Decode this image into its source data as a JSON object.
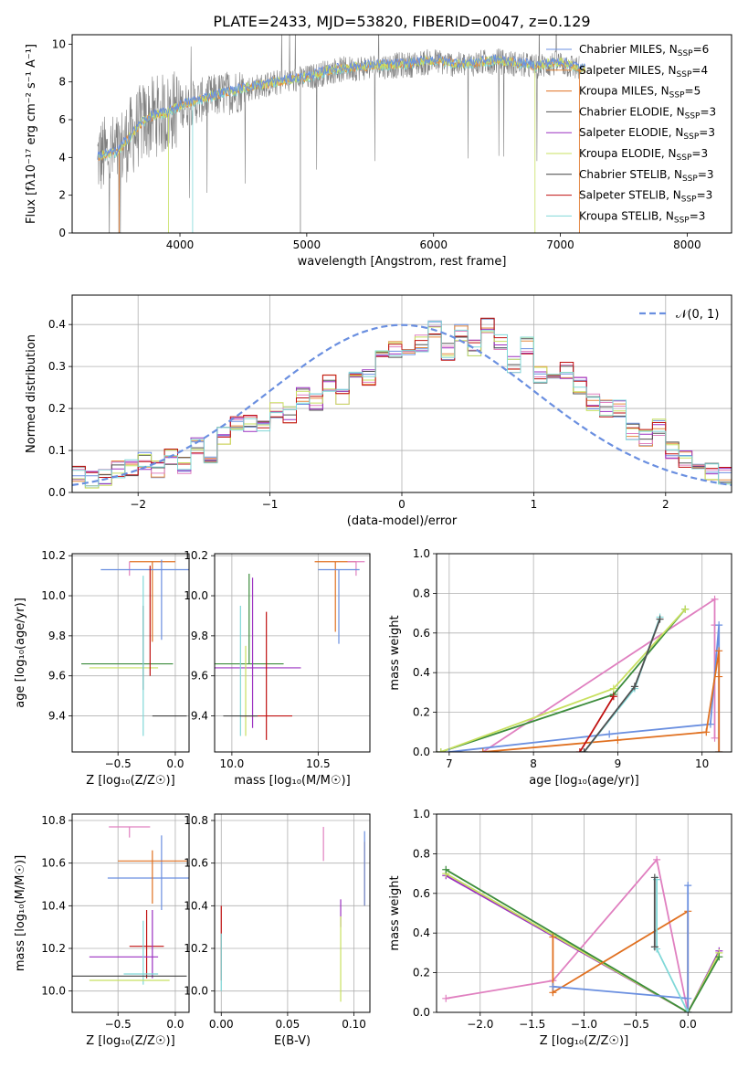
{
  "title": "PLATE=2433, MJD=53820, FIBERID=0047, z=0.129",
  "colors": {
    "chabrier_miles": "#6a8fe0",
    "salpeter_miles": "#e68a3c",
    "kroupa_miles": "#e07020",
    "chabrier_elodie": "#505050",
    "salpeter_elodie": "#9b30c0",
    "kroupa_elodie": "#c8e060",
    "chabrier_stelib": "#404040",
    "salpeter_stelib": "#c01010",
    "kroupa_stelib": "#80d8d8",
    "pink": "#e080c0",
    "green": "#3c8c3c",
    "gauss": "#6a8fe0",
    "spectrum": "#808080"
  },
  "chart_data": [
    {
      "type": "line",
      "title": "PLATE=2433, MJD=53820, FIBERID=0047, z=0.129",
      "xlabel": "wavelength [Angstrom, rest frame]",
      "ylabel": "Flux [fλ10⁻¹⁷ erg cm⁻² s⁻¹ A⁻¹]",
      "xlim": [
        3150,
        8350
      ],
      "ylim": [
        0,
        10.5
      ],
      "xticks": [
        "4000",
        "5000",
        "6000",
        "7000",
        "8000"
      ],
      "yticks": [
        "0",
        "2",
        "4",
        "6",
        "8",
        "10"
      ],
      "legend_position": "right",
      "legend": [
        {
          "label": "Chabrier MILES, N",
          "sub": "SSP",
          "suffix": "=6",
          "color_key": "chabrier_miles"
        },
        {
          "label": "Salpeter MILES, N",
          "sub": "SSP",
          "suffix": "=4",
          "color_key": "salpeter_miles"
        },
        {
          "label": "Kroupa MILES, N",
          "sub": "SSP",
          "suffix": "=5",
          "color_key": "kroupa_miles"
        },
        {
          "label": "Chabrier ELODIE, N",
          "sub": "SSP",
          "suffix": "=3",
          "color_key": "chabrier_elodie"
        },
        {
          "label": "Salpeter ELODIE, N",
          "sub": "SSP",
          "suffix": "=3",
          "color_key": "salpeter_elodie"
        },
        {
          "label": "Kroupa ELODIE, N",
          "sub": "SSP",
          "suffix": "=3",
          "color_key": "kroupa_elodie"
        },
        {
          "label": "Chabrier STELIB, N",
          "sub": "SSP",
          "suffix": "=3",
          "color_key": "chabrier_stelib"
        },
        {
          "label": "Salpeter STELIB, N",
          "sub": "SSP",
          "suffix": "=3",
          "color_key": "salpeter_stelib"
        },
        {
          "label": "Kroupa STELIB, N",
          "sub": "SSP",
          "suffix": "=3",
          "color_key": "kroupa_stelib"
        }
      ],
      "spectrum_start": 3350,
      "spectrum_end": 7150,
      "model_envelope": {
        "x": [
          3350,
          3500,
          3600,
          3700,
          3800,
          3900,
          4000,
          4100,
          4300,
          4500,
          4800,
          5000,
          5200,
          5500,
          5800,
          6000,
          6200,
          6500,
          6800,
          7000,
          7200
        ],
        "y": [
          4.0,
          4.2,
          5.0,
          5.8,
          6.2,
          6.3,
          6.7,
          6.9,
          7.3,
          7.6,
          8.0,
          8.2,
          8.6,
          8.8,
          8.9,
          9.1,
          8.9,
          9.1,
          8.8,
          9.0,
          8.6
        ]
      }
    },
    {
      "type": "histogram",
      "xlabel": "(data-model)/error",
      "ylabel": "Normed distribution",
      "xlim": [
        -2.5,
        2.5
      ],
      "ylim": [
        0,
        0.47
      ],
      "xticks": [
        "−2",
        "−1",
        "0",
        "1",
        "2"
      ],
      "yticks": [
        "0.0",
        "0.1",
        "0.2",
        "0.3",
        "0.4"
      ],
      "legend": "𝒩(0, 1)",
      "bin_edges_range": [
        -2.5,
        2.5
      ],
      "n_bins": 50,
      "values": [
        0.045,
        0.03,
        0.035,
        0.055,
        0.06,
        0.075,
        0.055,
        0.085,
        0.065,
        0.11,
        0.09,
        0.135,
        0.165,
        0.165,
        0.15,
        0.195,
        0.185,
        0.23,
        0.215,
        0.26,
        0.23,
        0.295,
        0.275,
        0.33,
        0.34,
        0.32,
        0.355,
        0.39,
        0.335,
        0.38,
        0.345,
        0.395,
        0.36,
        0.305,
        0.35,
        0.28,
        0.27,
        0.29,
        0.255,
        0.215,
        0.2,
        0.2,
        0.145,
        0.13,
        0.155,
        0.1,
        0.08,
        0.07,
        0.05,
        0.04
      ]
    },
    {
      "type": "scatter",
      "xlabel": "Z [log₁₀(Z/Z☉)]",
      "ylabel": "age  [log₁₀(age/yr)]",
      "xlim": [
        -0.9,
        0.12
      ],
      "ylim": [
        9.22,
        10.21
      ],
      "xticks": [
        "−0.5",
        "0.0"
      ],
      "yticks": [
        "9.4",
        "9.6",
        "9.8",
        "10.0",
        "10.2"
      ],
      "points": [
        {
          "x": -0.2,
          "y": 10.17,
          "xerr": 0.2,
          "yerr_lo": 0.4,
          "yerr_hi": 0.0,
          "c": "kroupa_miles"
        },
        {
          "x": -0.4,
          "y": 10.17,
          "xerr": 0.0,
          "yerr_lo": 0.07,
          "yerr_hi": 0.0,
          "c": "pink"
        },
        {
          "x": -0.2,
          "y": 10.13,
          "xerr": 0.45,
          "yerr_lo": 0.0,
          "yerr_hi": 0.0,
          "c": "chabrier_miles"
        },
        {
          "x": -0.12,
          "y": 10.13,
          "xerr": 0.0,
          "yerr_lo": 0.35,
          "yerr_hi": 0.05,
          "c": "chabrier_miles"
        },
        {
          "x": -0.42,
          "y": 9.66,
          "xerr": 0.4,
          "yerr_lo": 0.0,
          "yerr_hi": 0.0,
          "c": "green"
        },
        {
          "x": -0.45,
          "y": 9.64,
          "xerr": 0.3,
          "yerr_lo": 0.0,
          "yerr_hi": 0.0,
          "c": "kroupa_elodie"
        },
        {
          "x": -0.28,
          "y": 9.65,
          "xerr": 0.0,
          "yerr_lo": 0.12,
          "yerr_hi": 0.3,
          "c": "chabrier_elodie"
        },
        {
          "x": -0.22,
          "y": 9.7,
          "xerr": 0.0,
          "yerr_lo": 0.1,
          "yerr_hi": 0.45,
          "c": "salpeter_stelib"
        },
        {
          "x": -0.28,
          "y": 9.4,
          "xerr": 0.0,
          "yerr_lo": 0.1,
          "yerr_hi": 0.7,
          "c": "kroupa_stelib"
        },
        {
          "x": -0.05,
          "y": 9.4,
          "xerr": 0.15,
          "yerr_lo": 0.0,
          "yerr_hi": 0.0,
          "c": "chabrier_stelib"
        }
      ]
    },
    {
      "type": "scatter",
      "xlabel": "mass [log₁₀(M/M☉)]",
      "ylabel": "",
      "xlim": [
        9.9,
        10.8
      ],
      "ylim": [
        9.22,
        10.21
      ],
      "xticks": [
        "10.0",
        "10.5"
      ],
      "yticks": [
        "9.4",
        "9.6",
        "9.8",
        "10.0",
        "10.2"
      ],
      "points": [
        {
          "x": 10.6,
          "y": 10.17,
          "xerr": 0.12,
          "yerr_lo": 0.35,
          "yerr_hi": 0.0,
          "c": "kroupa_miles"
        },
        {
          "x": 10.72,
          "y": 10.17,
          "xerr": 0.05,
          "yerr_lo": 0.07,
          "yerr_hi": 0.0,
          "c": "pink"
        },
        {
          "x": 10.62,
          "y": 10.13,
          "xerr": 0.12,
          "yerr_lo": 0.37,
          "yerr_hi": 0.0,
          "c": "chabrier_miles"
        },
        {
          "x": 10.1,
          "y": 9.66,
          "xerr": 0.2,
          "yerr_lo": 0.0,
          "yerr_hi": 0.45,
          "c": "green"
        },
        {
          "x": 10.12,
          "y": 9.64,
          "xerr": 0.28,
          "yerr_lo": 0.3,
          "yerr_hi": 0.45,
          "c": "salpeter_elodie"
        },
        {
          "x": 10.2,
          "y": 9.65,
          "xerr": 0.0,
          "yerr_lo": 0.37,
          "yerr_hi": 0.27,
          "c": "salpeter_stelib"
        },
        {
          "x": 10.08,
          "y": 9.65,
          "xerr": 0.0,
          "yerr_lo": 0.35,
          "yerr_hi": 0.1,
          "c": "kroupa_elodie"
        },
        {
          "x": 10.05,
          "y": 9.4,
          "xerr": 0.0,
          "yerr_lo": 0.1,
          "yerr_hi": 0.55,
          "c": "kroupa_stelib"
        },
        {
          "x": 10.2,
          "y": 9.4,
          "xerr": 0.15,
          "yerr_lo": 0.0,
          "yerr_hi": 0.0,
          "c": "salpeter_stelib"
        },
        {
          "x": 10.05,
          "y": 9.4,
          "xerr": 0.1,
          "yerr_lo": 0.0,
          "yerr_hi": 0.0,
          "c": "chabrier_stelib"
        }
      ]
    },
    {
      "type": "line",
      "xlabel": "age  [log₁₀(age/yr)]",
      "ylabel": "mass weight",
      "xlim": [
        6.85,
        10.35
      ],
      "ylim": [
        0,
        1.0
      ],
      "xticks": [
        "7",
        "8",
        "9",
        "10"
      ],
      "yticks": [
        "0.0",
        "0.2",
        "0.4",
        "0.6",
        "0.8",
        "1.0"
      ],
      "series": [
        {
          "c": "pink",
          "x": [
            7.4,
            10.15,
            10.15,
            10.15
          ],
          "y": [
            0.0,
            0.77,
            0.64,
            0.07
          ]
        },
        {
          "c": "green",
          "x": [
            6.9,
            8.95,
            9.8
          ],
          "y": [
            0.0,
            0.29,
            0.72
          ]
        },
        {
          "c": "kroupa_elodie",
          "x": [
            6.9,
            8.95,
            9.8
          ],
          "y": [
            0.0,
            0.32,
            0.72
          ]
        },
        {
          "c": "chabrier_miles",
          "x": [
            7.0,
            8.9,
            10.1,
            10.2,
            10.2
          ],
          "y": [
            0.0,
            0.09,
            0.14,
            0.64,
            0.0
          ]
        },
        {
          "c": "kroupa_miles",
          "x": [
            7.4,
            9.0,
            10.05,
            10.2,
            10.2,
            10.2
          ],
          "y": [
            0.0,
            0.06,
            0.1,
            0.51,
            0.38,
            0.0
          ]
        },
        {
          "c": "salpeter_stelib",
          "x": [
            8.55,
            8.95
          ],
          "y": [
            0.0,
            0.28
          ]
        },
        {
          "c": "kroupa_stelib",
          "x": [
            8.6,
            9.2,
            9.5
          ],
          "y": [
            0.0,
            0.32,
            0.68
          ]
        },
        {
          "c": "chabrier_elodie",
          "x": [
            8.6,
            9.2,
            9.5
          ],
          "y": [
            0.0,
            0.33,
            0.67
          ]
        }
      ]
    },
    {
      "type": "scatter",
      "xlabel": "Z [log₁₀(Z/Z☉)]",
      "ylabel": "mass [log₁₀(M/M☉)]",
      "xlim": [
        -0.9,
        0.12
      ],
      "ylim": [
        9.9,
        10.83
      ],
      "xticks": [
        "−0.5",
        "0.0"
      ],
      "yticks": [
        "10.0",
        "10.2",
        "10.4",
        "10.6",
        "10.8"
      ],
      "points": [
        {
          "x": -0.4,
          "y": 10.77,
          "xerr": 0.18,
          "yerr_lo": 0.05,
          "yerr_hi": 0.0,
          "c": "pink"
        },
        {
          "x": -0.12,
          "y": 10.53,
          "xerr": 0.47,
          "yerr_lo": 0.15,
          "yerr_hi": 0.2,
          "c": "chabrier_miles"
        },
        {
          "x": -0.2,
          "y": 10.61,
          "xerr": 0.3,
          "yerr_lo": 0.2,
          "yerr_hi": 0.05,
          "c": "kroupa_miles"
        },
        {
          "x": -0.25,
          "y": 10.21,
          "xerr": 0.15,
          "yerr_lo": 0.15,
          "yerr_hi": 0.17,
          "c": "salpeter_stelib"
        },
        {
          "x": -0.45,
          "y": 10.16,
          "xerr": 0.3,
          "yerr_lo": 0.0,
          "yerr_hi": 0.0,
          "c": "salpeter_elodie"
        },
        {
          "x": -0.2,
          "y": 10.16,
          "xerr": 0.0,
          "yerr_lo": 0.1,
          "yerr_hi": 0.22,
          "c": "salpeter_elodie"
        },
        {
          "x": -0.28,
          "y": 10.13,
          "xerr": 0.0,
          "yerr_lo": 0.1,
          "yerr_hi": 0.2,
          "c": "kroupa_stelib"
        },
        {
          "x": -0.4,
          "y": 10.05,
          "xerr": 0.35,
          "yerr_lo": 0.0,
          "yerr_hi": 0.0,
          "c": "kroupa_elodie"
        },
        {
          "x": -0.4,
          "y": 10.07,
          "xerr": 0.5,
          "yerr_lo": 0.0,
          "yerr_hi": 0.0,
          "c": "chabrier_stelib"
        },
        {
          "x": -0.3,
          "y": 10.08,
          "xerr": 0.15,
          "yerr_lo": 0.0,
          "yerr_hi": 0.0,
          "c": "kroupa_stelib"
        }
      ]
    },
    {
      "type": "scatter",
      "xlabel": "E(B-V)",
      "ylabel": "",
      "xlim": [
        -0.005,
        0.112
      ],
      "ylim": [
        9.9,
        10.83
      ],
      "xticks": [
        "0.00",
        "0.05",
        "0.10"
      ],
      "yticks": [
        "10.0",
        "10.2",
        "10.4",
        "10.6",
        "10.8"
      ],
      "points": [
        {
          "x": 0.0,
          "y": 10.25,
          "xerr": 0.0,
          "yerr_lo": 0.2,
          "yerr_hi": 0.15,
          "c": "salpeter_stelib"
        },
        {
          "x": 0.0,
          "y": 10.15,
          "xerr": 0.0,
          "yerr_lo": 0.15,
          "yerr_hi": 0.12,
          "c": "kroupa_stelib"
        },
        {
          "x": 0.077,
          "y": 10.7,
          "xerr": 0.0,
          "yerr_lo": 0.09,
          "yerr_hi": 0.07,
          "c": "pink"
        },
        {
          "x": 0.09,
          "y": 10.35,
          "xerr": 0.0,
          "yerr_lo": 0.05,
          "yerr_hi": 0.08,
          "c": "salpeter_elodie"
        },
        {
          "x": 0.09,
          "y": 10.15,
          "xerr": 0.0,
          "yerr_lo": 0.2,
          "yerr_hi": 0.2,
          "c": "kroupa_elodie"
        },
        {
          "x": 0.108,
          "y": 10.55,
          "xerr": 0.0,
          "yerr_lo": 0.15,
          "yerr_hi": 0.15,
          "c": "kroupa_miles"
        },
        {
          "x": 0.108,
          "y": 10.6,
          "xerr": 0.0,
          "yerr_lo": 0.2,
          "yerr_hi": 0.15,
          "c": "chabrier_miles"
        }
      ]
    },
    {
      "type": "line",
      "xlabel": "Z [log₁₀(Z/Z☉)]",
      "ylabel": "mass weight",
      "xlim": [
        -2.42,
        0.42
      ],
      "ylim": [
        0,
        1.0
      ],
      "xticks": [
        "−2.0",
        "−1.5",
        "−1.0",
        "−0.5",
        "0.0"
      ],
      "yticks": [
        "0.0",
        "0.2",
        "0.4",
        "0.6",
        "0.8",
        "1.0"
      ],
      "series": [
        {
          "c": "pink",
          "x": [
            -2.33,
            -1.3,
            -0.3,
            0.0
          ],
          "y": [
            0.07,
            0.16,
            0.77,
            0.0
          ]
        },
        {
          "c": "salpeter_elodie",
          "x": [
            -2.33,
            0.0,
            0.3
          ],
          "y": [
            0.69,
            0.0,
            0.31
          ]
        },
        {
          "c": "kroupa_elodie",
          "x": [
            -2.33,
            0.0,
            0.3
          ],
          "y": [
            0.7,
            0.0,
            0.3
          ]
        },
        {
          "c": "green",
          "x": [
            -2.33,
            0.0,
            0.3
          ],
          "y": [
            0.72,
            0.0,
            0.28
          ]
        },
        {
          "c": "kroupa_miles",
          "x": [
            -1.3,
            -1.3,
            0.0,
            0.0
          ],
          "y": [
            0.38,
            0.1,
            0.51,
            0.0
          ]
        },
        {
          "c": "chabrier_miles",
          "x": [
            -1.3,
            0.0,
            0.0,
            0.0
          ],
          "y": [
            0.13,
            0.07,
            0.64,
            0.0
          ]
        },
        {
          "c": "kroupa_stelib",
          "x": [
            -0.3,
            -0.3,
            0.0
          ],
          "y": [
            0.67,
            0.32,
            0.0
          ]
        },
        {
          "c": "chabrier_elodie",
          "x": [
            -0.32,
            -0.32
          ],
          "y": [
            0.68,
            0.33
          ]
        }
      ]
    }
  ]
}
